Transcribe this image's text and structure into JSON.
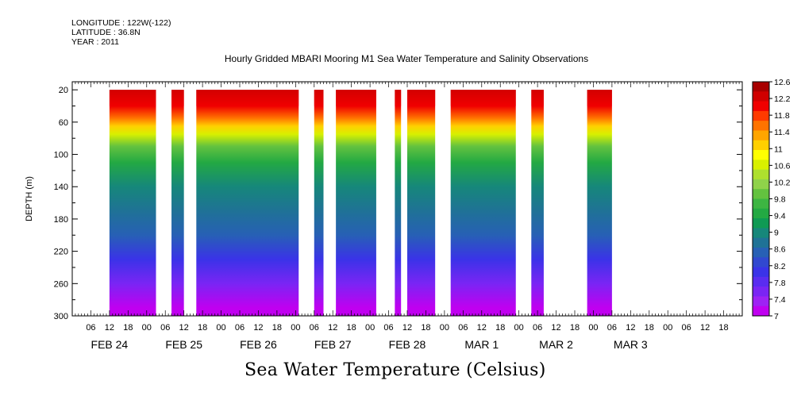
{
  "header": {
    "longitude": "LONGITUDE : 122W(-122)",
    "latitude": "LATITUDE : 36.8N",
    "year": "YEAR : 2011",
    "title": "Hourly Gridded MBARI Mooring M1 Sea Water Temperature and Salinity Observations"
  },
  "footer": {
    "variable_label": "Sea Water Temperature (Celsius)"
  },
  "chart_data": {
    "type": "heatmap",
    "title": "Hourly Gridded MBARI Mooring M1 Sea Water Temperature and Salinity Observations",
    "ylabel": "DEPTH (m)",
    "xlabel": "",
    "ylim": [
      300,
      10
    ],
    "y_inverted": true,
    "yticks": [
      20,
      60,
      100,
      140,
      180,
      220,
      260,
      300
    ],
    "x_range_hours": [
      0,
      216
    ],
    "x_start": "FEB 24 2011 00:00",
    "hour_tick_labels": [
      "06",
      "12",
      "18",
      "00",
      "06",
      "12",
      "18",
      "00",
      "06",
      "12",
      "18",
      "00",
      "06",
      "12",
      "18",
      "00",
      "06",
      "12",
      "18",
      "00",
      "06",
      "12",
      "18",
      "00",
      "06",
      "12",
      "18",
      "00",
      "06",
      "12",
      "18",
      "00",
      "06",
      "12",
      "18"
    ],
    "day_labels": [
      "FEB 24",
      "FEB 25",
      "FEB 26",
      "FEB 27",
      "FEB 28",
      "MAR  1",
      "MAR  2",
      "MAR  3"
    ],
    "data_blocks_hours": [
      [
        12,
        27
      ],
      [
        32,
        36
      ],
      [
        40,
        73
      ],
      [
        78,
        81
      ],
      [
        85,
        98
      ],
      [
        104,
        106
      ],
      [
        108,
        117
      ],
      [
        122,
        143
      ],
      [
        148,
        152
      ],
      [
        166,
        174
      ]
    ],
    "depth_profile": [
      {
        "depth": 20,
        "temp": 12.5
      },
      {
        "depth": 40,
        "temp": 12.1
      },
      {
        "depth": 55,
        "temp": 11.6
      },
      {
        "depth": 65,
        "temp": 11.1
      },
      {
        "depth": 75,
        "temp": 10.5
      },
      {
        "depth": 90,
        "temp": 9.8
      },
      {
        "depth": 110,
        "temp": 9.4
      },
      {
        "depth": 140,
        "temp": 9.1
      },
      {
        "depth": 170,
        "temp": 8.8
      },
      {
        "depth": 200,
        "temp": 8.4
      },
      {
        "depth": 230,
        "temp": 8.0
      },
      {
        "depth": 260,
        "temp": 7.6
      },
      {
        "depth": 290,
        "temp": 7.2
      },
      {
        "depth": 300,
        "temp": 7.05
      }
    ],
    "colorbar": {
      "levels": [
        "12.6",
        "12.2",
        "11.8",
        "11.4",
        "11",
        "10.6",
        "10.2",
        "9.8",
        "9.4",
        "9",
        "8.6",
        "8.2",
        "7.8",
        "7.4",
        "7"
      ],
      "colors": [
        "#a80000",
        "#d00000",
        "#f00000",
        "#ff3a00",
        "#ff7300",
        "#ffa500",
        "#ffd000",
        "#ffff00",
        "#d8f000",
        "#aee02e",
        "#8fd24a",
        "#63c23f",
        "#3db542",
        "#23a943",
        "#0f9a54",
        "#16877a",
        "#1f7296",
        "#2760b5",
        "#3148d0",
        "#3a33e8",
        "#5a2cf0",
        "#7a25f4",
        "#9e22f4",
        "#c000f0"
      ]
    }
  }
}
